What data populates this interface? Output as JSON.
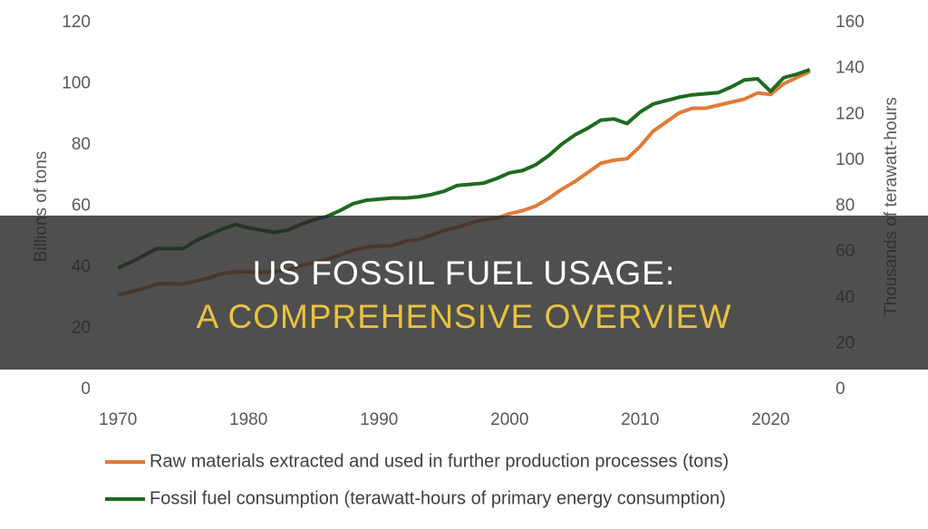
{
  "chart_data": {
    "type": "line",
    "x": [
      1970,
      1971,
      1972,
      1973,
      1974,
      1975,
      1976,
      1977,
      1978,
      1979,
      1980,
      1981,
      1982,
      1983,
      1984,
      1985,
      1986,
      1987,
      1988,
      1989,
      1990,
      1991,
      1992,
      1993,
      1994,
      1995,
      1996,
      1997,
      1998,
      1999,
      2000,
      2001,
      2002,
      2003,
      2004,
      2005,
      2006,
      2007,
      2008,
      2009,
      2010,
      2011,
      2012,
      2013,
      2014,
      2015,
      2016,
      2017,
      2018,
      2019,
      2020,
      2021,
      2022,
      2023
    ],
    "xlim": [
      1968.6,
      2023.1
    ],
    "xticks": [
      1970,
      1980,
      1990,
      2000,
      2010,
      2020
    ],
    "ylim": [
      0,
      120
    ],
    "yticks": [
      0,
      20,
      40,
      60,
      80,
      100,
      120
    ],
    "y2lim": [
      0,
      160
    ],
    "y2ticks": [
      0,
      20,
      40,
      60,
      80,
      100,
      120,
      140,
      160
    ],
    "ylabel": "Billions of tons",
    "y2label": "Thousands of terawatt-hours",
    "series": [
      {
        "name": "Raw materials extracted and used in further production processes (tons)",
        "color": "#e07b39",
        "values": [
          31,
          32,
          33,
          34.5,
          34.7,
          34.5,
          35.5,
          36.5,
          38,
          38.5,
          38.5,
          38.3,
          38.5,
          39,
          40.5,
          41.5,
          42.5,
          44,
          45.5,
          46.5,
          47,
          47,
          48.5,
          49,
          50.5,
          52,
          53,
          54.5,
          55.5,
          56,
          57.5,
          58.5,
          60,
          62.5,
          65.5,
          68,
          71,
          74,
          75,
          75.5,
          79.5,
          84.5,
          87.5,
          90.5,
          92,
          92,
          93,
          94,
          95,
          97,
          96.5,
          100,
          102,
          104
        ]
      },
      {
        "name": "Fossil fuel consumption (terawatt-hours of primary energy consumption)",
        "color": "#1e6b1e",
        "axis": "y2",
        "values": [
          53,
          55.5,
          58.5,
          61.5,
          61.5,
          61.5,
          65,
          67.5,
          70,
          72,
          70.5,
          69.5,
          68.5,
          69.5,
          72,
          74,
          75.5,
          78,
          81,
          82.5,
          83,
          83.5,
          83.5,
          84,
          85,
          86.5,
          89,
          89.5,
          90,
          92,
          94.5,
          95.5,
          98,
          102,
          107,
          111,
          114,
          117.5,
          118,
          116,
          121,
          124.5,
          126,
          127.5,
          128.5,
          129,
          129.5,
          132,
          135,
          135.5,
          130,
          136,
          137.5,
          139.5
        ]
      }
    ]
  },
  "banner": {
    "line1": "US FOSSIL FUEL USAGE:",
    "line2": "A COMPREHENSIVE OVERVIEW"
  }
}
